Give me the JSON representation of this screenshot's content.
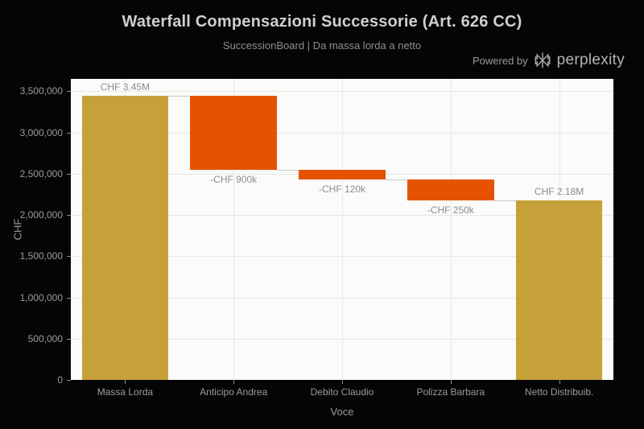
{
  "header": {
    "title": "Waterfall Compensazioni Successorie (Art. 626 CC)",
    "subtitle": "SuccessionBoard | Da massa lorda a netto",
    "powered_by": "Powered by",
    "brand": "perplexity"
  },
  "chart_data": {
    "type": "waterfall",
    "title": "Waterfall Compensazioni Successorie (Art. 626 CC)",
    "subtitle": "SuccessionBoard | Da massa lorda a netto",
    "categories": [
      "Massa Lorda",
      "Anticipo Andrea",
      "Debito Claudio",
      "Polizza Barbara",
      "Netto Distribuib."
    ],
    "values": [
      3450000,
      -900000,
      -120000,
      -250000,
      2180000
    ],
    "measures": [
      "absolute",
      "relative",
      "relative",
      "relative",
      "total"
    ],
    "bar_labels": [
      "CHF 3.45M",
      "-CHF 900k",
      "-CHF 120k",
      "-CHF 250k",
      "CHF 2.18M"
    ],
    "running_levels": [
      3450000,
      2550000,
      2430000,
      2180000,
      2180000
    ],
    "xlabel": "Voce",
    "ylabel": "CHF",
    "ylim": [
      0,
      3650000
    ],
    "ytick_step": 500000,
    "ytick_labels": [
      "0",
      "500,000",
      "1,000,000",
      "1,500,000",
      "2,000,000",
      "2,500,000",
      "3,000,000",
      "3,500,000"
    ],
    "grid": true,
    "legend": "none",
    "colors": {
      "gain": "#C6A139",
      "loss": "#E55301",
      "plot_bg": "#FBFBF9",
      "grid": "#E7E7E4",
      "connector": "#C9C9C7",
      "tick": "#8A8A8A",
      "bar_label": "#8C8C8C",
      "page_bg": "#050505"
    }
  }
}
